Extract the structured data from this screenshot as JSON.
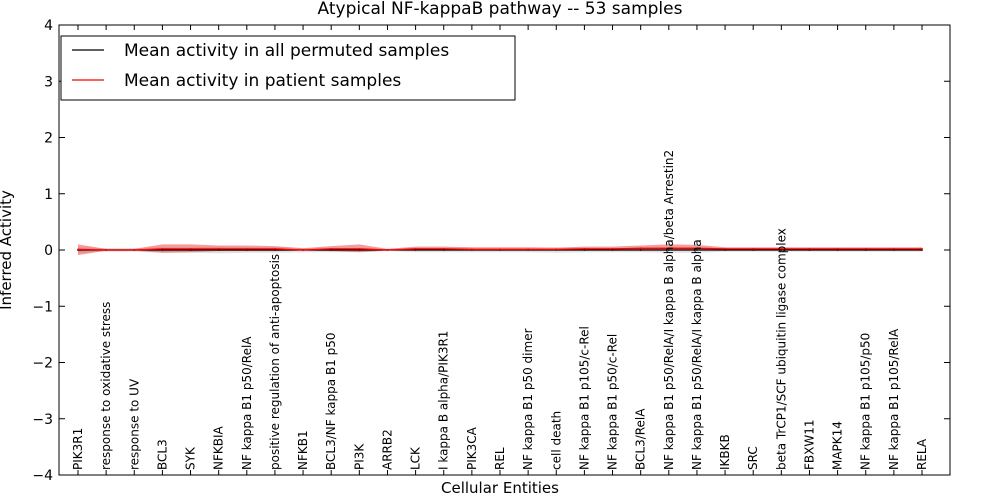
{
  "chart_data": {
    "type": "line",
    "title": "Atypical NF-kappaB pathway -- 53 samples",
    "xlabel": "Cellular Entities",
    "ylabel": "Inferred Activity",
    "ylim": [
      -4,
      4
    ],
    "yticks": [
      -4,
      -3,
      -2,
      -1,
      0,
      1,
      2,
      3,
      4
    ],
    "ytick_labels": [
      "−4",
      "−3",
      "−2",
      "−1",
      "0",
      "1",
      "2",
      "3",
      "4"
    ],
    "grid": false,
    "legend_position": "top-left",
    "categories": [
      "PIK3R1",
      "response to oxidative stress",
      "response to UV",
      "BCL3",
      "SYK",
      "NFKBIA",
      "NF kappa B1 p50/RelA",
      "positive regulation of anti-apoptosis",
      "NFKB1",
      "BCL3/NF kappa B1 p50",
      "PI3K",
      "ARRB2",
      "LCK",
      "I kappa B alpha/PIK3R1",
      "PIK3CA",
      "REL",
      "NF kappa B1 p50 dimer",
      "cell death",
      "NF kappa B1 p105/c-Rel",
      "NF kappa B1 p50/c-Rel",
      "BCL3/RelA",
      "NF kappa B1 p50/RelA/I kappa B alpha/beta Arrestin2",
      "NF kappa B1 p50/RelA/I kappa B alpha",
      "IKBKB",
      "SRC",
      "beta TrCP1/SCF ubiquitin ligase complex",
      "FBXW11",
      "MAPK14",
      "NF kappa B1 p105/p50",
      "NF kappa B1 p105/RelA",
      "RELA"
    ],
    "series": [
      {
        "name": "Mean activity in all permuted samples",
        "color": "#000000",
        "values": [
          0,
          0,
          0,
          0,
          0,
          0,
          0,
          0,
          0,
          0,
          0,
          0,
          0,
          0,
          0,
          0,
          0,
          0,
          0,
          0,
          0,
          0,
          0,
          0,
          0,
          0,
          0,
          0,
          0,
          0,
          0
        ],
        "lower": [
          -0.05,
          -0.03,
          -0.03,
          -0.05,
          -0.05,
          -0.06,
          -0.05,
          -0.05,
          -0.04,
          -0.04,
          -0.04,
          -0.02,
          -0.04,
          -0.04,
          -0.04,
          -0.04,
          -0.04,
          -0.05,
          -0.04,
          -0.04,
          -0.04,
          -0.05,
          -0.05,
          -0.03,
          -0.03,
          -0.03,
          -0.03,
          -0.03,
          -0.03,
          -0.03,
          -0.03
        ],
        "upper": [
          0.05,
          0.03,
          0.03,
          0.05,
          0.05,
          0.06,
          0.05,
          0.05,
          0.04,
          0.04,
          0.04,
          0.02,
          0.04,
          0.04,
          0.04,
          0.04,
          0.04,
          0.05,
          0.04,
          0.04,
          0.04,
          0.05,
          0.05,
          0.03,
          0.03,
          0.03,
          0.03,
          0.03,
          0.03,
          0.03,
          0.03
        ]
      },
      {
        "name": "Mean activity in patient samples",
        "color": "#ff0000",
        "values": [
          0.01,
          0.0,
          0.0,
          0.02,
          0.02,
          0.02,
          0.02,
          0.02,
          0.0,
          0.02,
          0.02,
          0.0,
          0.02,
          0.02,
          0.01,
          0.01,
          0.01,
          0.01,
          0.02,
          0.02,
          0.03,
          0.03,
          0.03,
          0.02,
          0.02,
          0.02,
          0.02,
          0.02,
          0.02,
          0.02,
          0.02
        ],
        "lower": [
          -0.09,
          -0.01,
          -0.01,
          -0.05,
          -0.04,
          -0.02,
          -0.02,
          -0.02,
          -0.01,
          -0.02,
          -0.04,
          -0.01,
          0.0,
          0.0,
          0.0,
          0.0,
          0.0,
          0.0,
          0.0,
          0.0,
          0.0,
          0.0,
          0.0,
          0.0,
          0.0,
          0.0,
          0.0,
          0.0,
          0.0,
          0.0,
          0.0
        ],
        "upper": [
          0.1,
          0.02,
          0.02,
          0.1,
          0.1,
          0.08,
          0.08,
          0.07,
          0.03,
          0.07,
          0.1,
          0.02,
          0.06,
          0.06,
          0.05,
          0.05,
          0.05,
          0.04,
          0.06,
          0.06,
          0.08,
          0.1,
          0.09,
          0.05,
          0.05,
          0.05,
          0.05,
          0.05,
          0.05,
          0.05,
          0.05
        ]
      }
    ],
    "baseline": {
      "y": 0,
      "style": "dashed"
    }
  }
}
